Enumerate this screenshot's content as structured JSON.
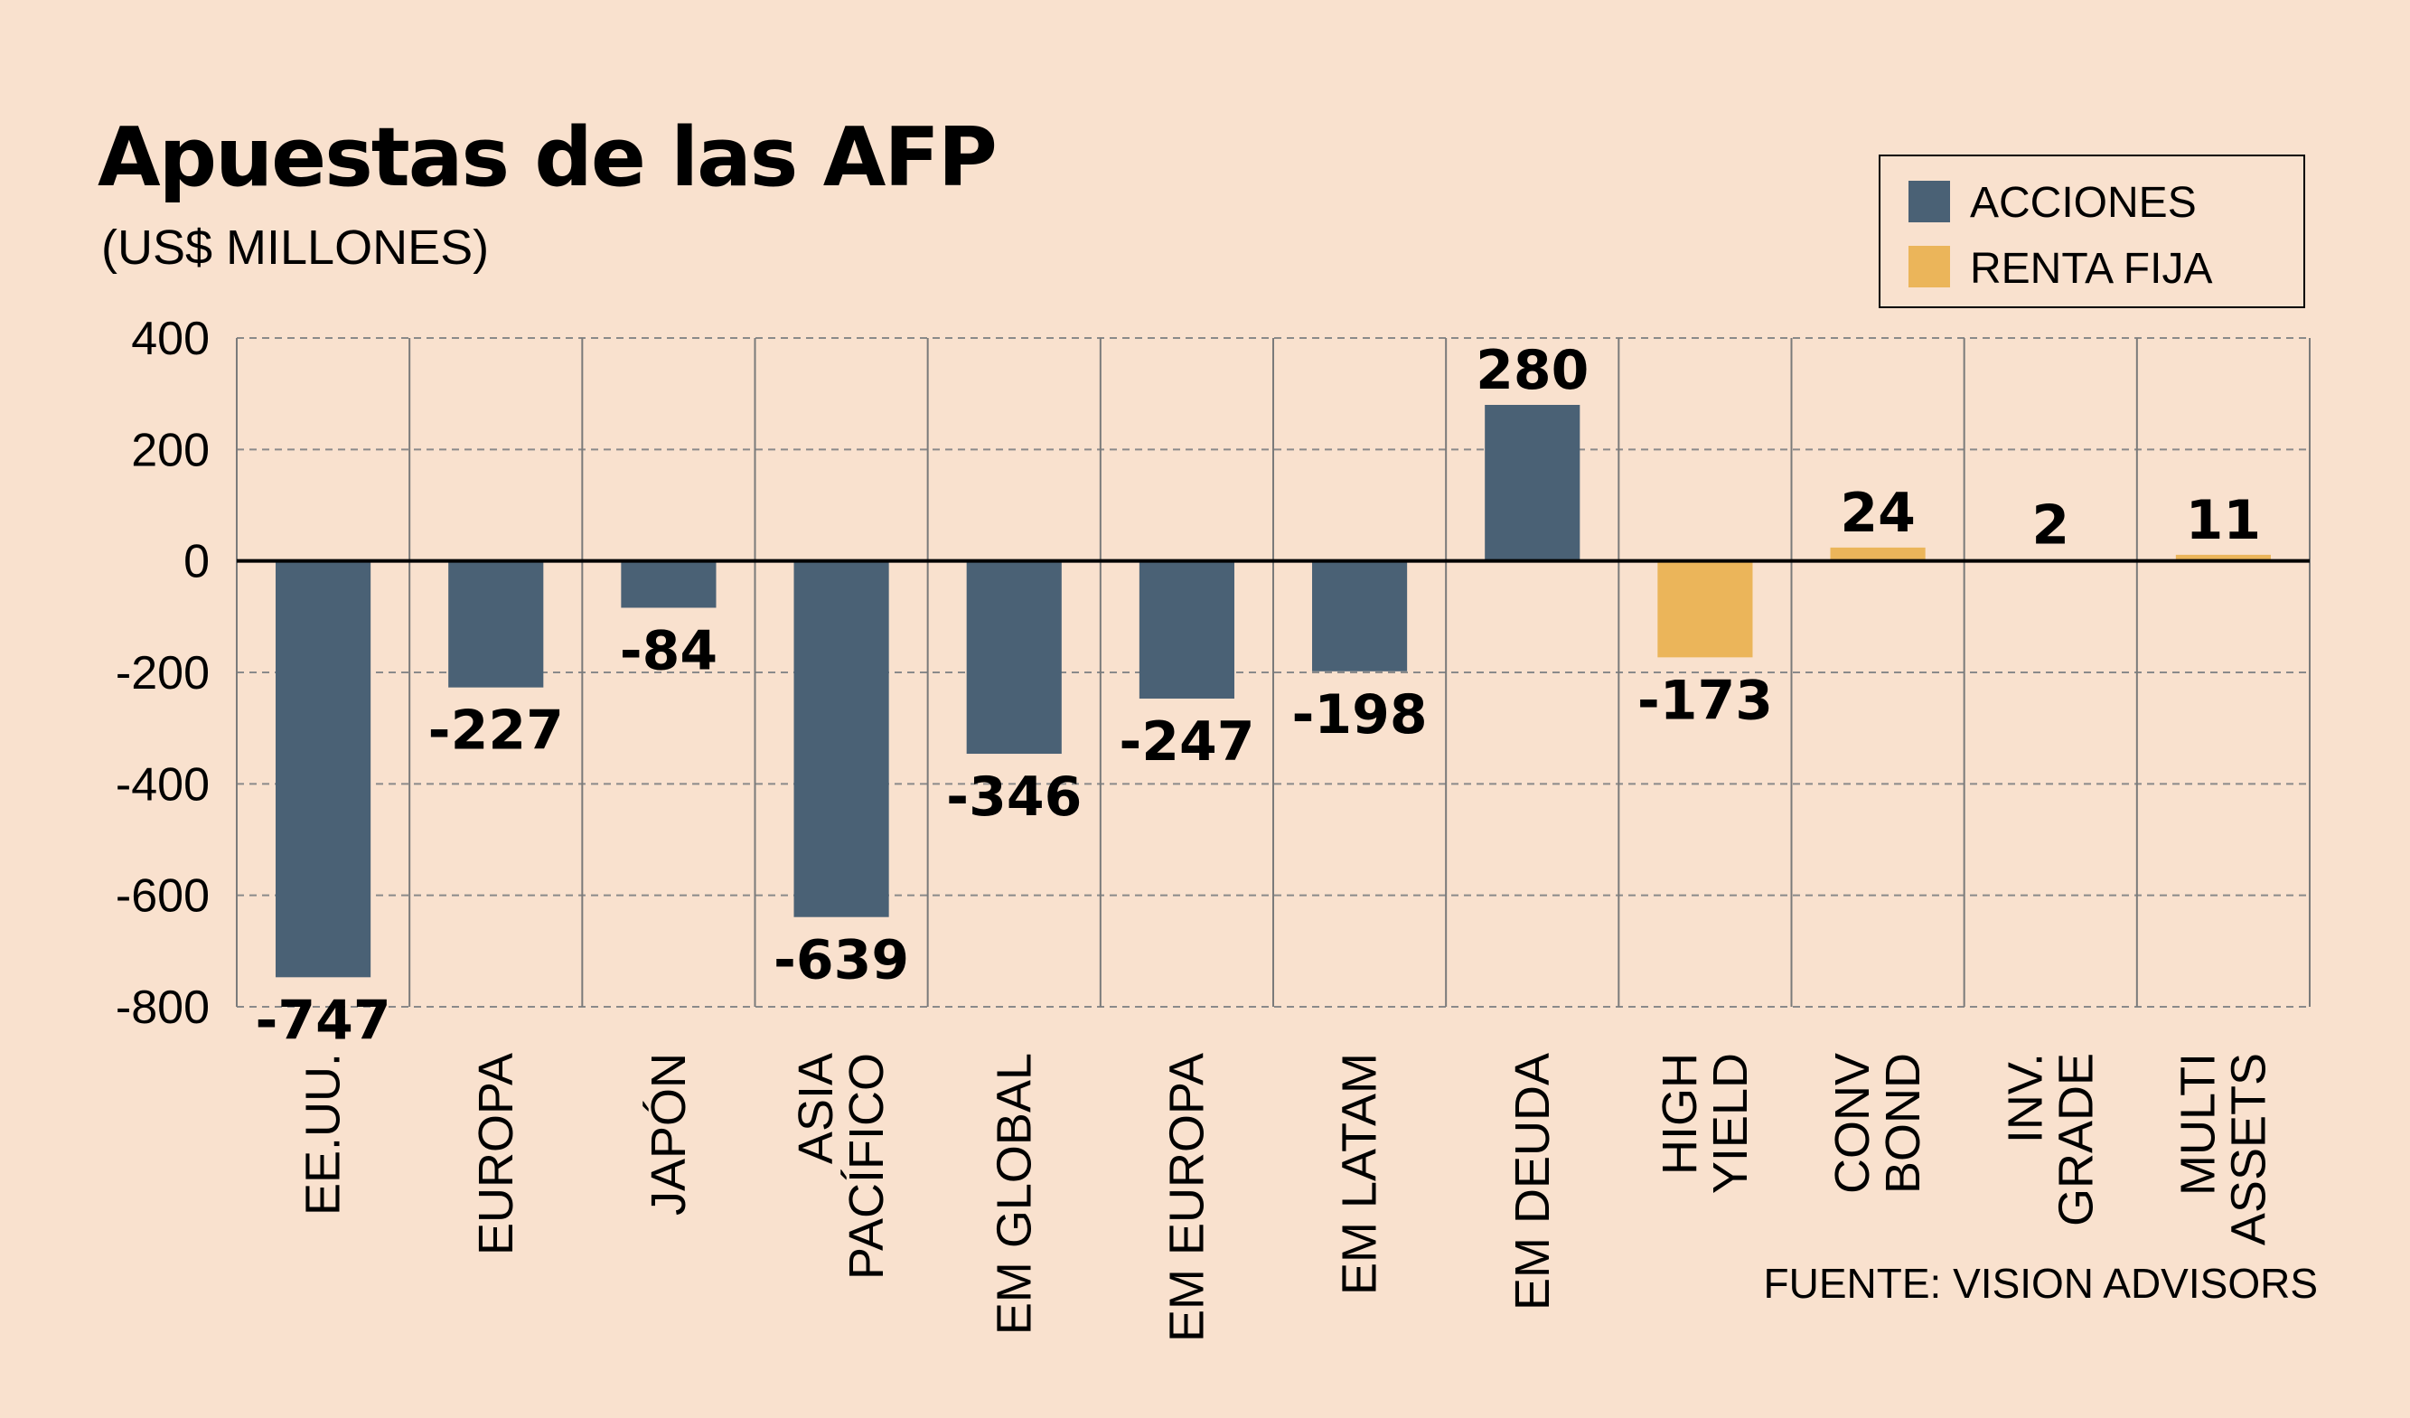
{
  "header": {
    "title": "Apuestas de las AFP",
    "subtitle": "(US$ MILLONES)"
  },
  "legend": {
    "placement": "top-right",
    "items": [
      {
        "label": "ACCIONES",
        "color": "#4a6175"
      },
      {
        "label": "RENTA FIJA",
        "color": "#ebb55a"
      }
    ]
  },
  "source": "FUENTE: VISION ADVISORS",
  "colors": {
    "background": "#f9e1ce",
    "acciones": "#4a6175",
    "renta_fija": "#ebb55a",
    "grid": "#8a8a8a"
  },
  "chart_data": {
    "type": "bar",
    "title": "Apuestas de las AFP",
    "subtitle": "(US$ MILLONES)",
    "ylim": [
      -800,
      400
    ],
    "yticks": [
      400,
      200,
      0,
      -200,
      -400,
      -600,
      -800
    ],
    "ytick_labels": [
      "400",
      "200",
      "0",
      "-200",
      "-400",
      "-600",
      "-800"
    ],
    "grid": true,
    "legend_placement": "top-right",
    "categories": [
      {
        "lines": [
          "EE.UU."
        ],
        "group": "ACCIONES"
      },
      {
        "lines": [
          "EUROPA"
        ],
        "group": "ACCIONES"
      },
      {
        "lines": [
          "JAPÓN"
        ],
        "group": "ACCIONES"
      },
      {
        "lines": [
          "ASIA",
          "PACÍFICO"
        ],
        "group": "ACCIONES"
      },
      {
        "lines": [
          "EM GLOBAL"
        ],
        "group": "ACCIONES"
      },
      {
        "lines": [
          "EM EUROPA"
        ],
        "group": "ACCIONES"
      },
      {
        "lines": [
          "EM LATAM"
        ],
        "group": "ACCIONES"
      },
      {
        "lines": [
          "EM DEUDA"
        ],
        "group": "ACCIONES"
      },
      {
        "lines": [
          "HIGH",
          "YIELD"
        ],
        "group": "RENTA FIJA"
      },
      {
        "lines": [
          "CONV",
          "BOND"
        ],
        "group": "RENTA FIJA"
      },
      {
        "lines": [
          "INV.",
          "GRADE"
        ],
        "group": "RENTA FIJA"
      },
      {
        "lines": [
          "MULTI",
          "ASSETS"
        ],
        "group": "RENTA FIJA"
      }
    ],
    "values": [
      -747,
      -227,
      -84,
      -639,
      -346,
      -247,
      -198,
      280,
      -173,
      24,
      2,
      11
    ],
    "value_labels": [
      "-747",
      "-227",
      "-84",
      "-639",
      "-346",
      "-247",
      "-198",
      "280",
      "-173",
      "24",
      "2",
      "11"
    ]
  }
}
